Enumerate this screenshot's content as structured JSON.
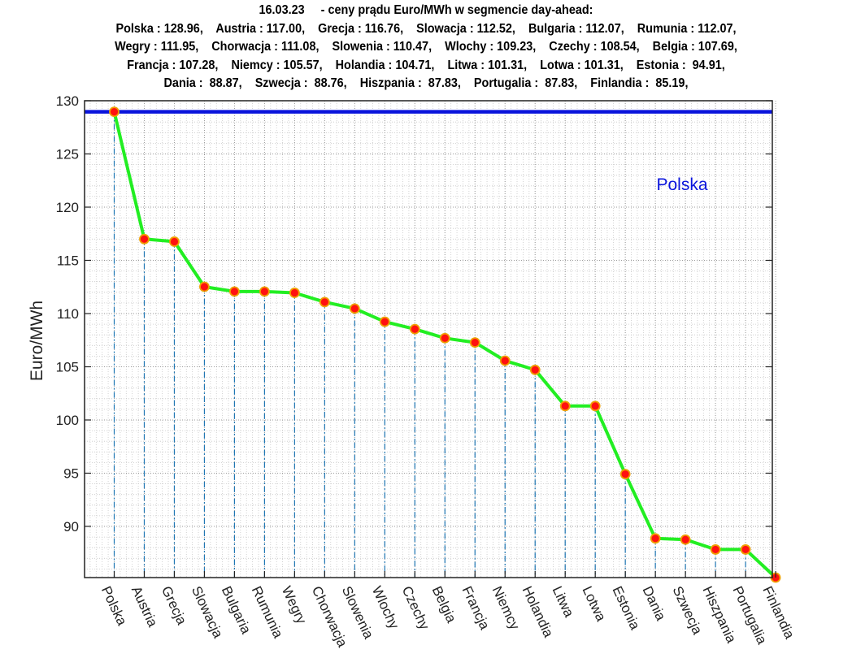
{
  "chart_data": {
    "type": "line",
    "title": "16.03.23     - ceny prądu Euro/MWh w segmencie day-ahead:",
    "subtitle_lines": [
      "Polska : 128.96,    Austria : 117.00,    Grecja : 116.76,    Slowacja : 112.52,    Bulgaria : 112.07,    Rumunia : 112.07,",
      "Wegry : 111.95,    Chorwacja : 111.08,    Slowenia : 110.47,    Wlochy : 109.23,    Czechy : 108.54,    Belgia : 107.69,",
      "Francja : 107.28,    Niemcy : 105.57,    Holandia : 104.71,    Litwa : 101.31,    Lotwa : 101.31,    Estonia :  94.91,",
      "Dania :  88.87,    Szwecja :  88.76,    Hiszpania :  87.83,    Portugalia :  87.83,    Finlandia :  85.19,"
    ],
    "xlabel": "",
    "ylabel": "Euro/MWh",
    "categories": [
      "Polska",
      "Austria",
      "Grecja",
      "Slowacja",
      "Bulgaria",
      "Rumunia",
      "Wegry",
      "Chorwacja",
      "Slowenia",
      "Wlochy",
      "Czechy",
      "Belgia",
      "Francja",
      "Niemcy",
      "Holandia",
      "Litwa",
      "Lotwa",
      "Estonia",
      "Dania",
      "Szwecja",
      "Hiszpania",
      "Portugalia",
      "Finlandia"
    ],
    "values": [
      128.96,
      117.0,
      116.76,
      112.52,
      112.07,
      112.07,
      111.95,
      111.08,
      110.47,
      109.23,
      108.54,
      107.69,
      107.28,
      105.57,
      104.71,
      101.31,
      101.31,
      94.91,
      88.87,
      88.76,
      87.83,
      87.83,
      85.19
    ],
    "ylim": [
      85.19,
      130
    ],
    "yticks": [
      "90",
      "95",
      "100",
      "105",
      "110",
      "115",
      "120",
      "125",
      "130"
    ],
    "reference_line": {
      "value": 128.96,
      "label": "Polska",
      "color": "#0a14dc"
    },
    "grid": true,
    "minor_grid": true,
    "colors": {
      "line": "#22ee22",
      "marker_face": "#ff1111",
      "marker_edge": "#f0a000",
      "drop_line": "#1f77b4",
      "axis": "#222222"
    }
  }
}
